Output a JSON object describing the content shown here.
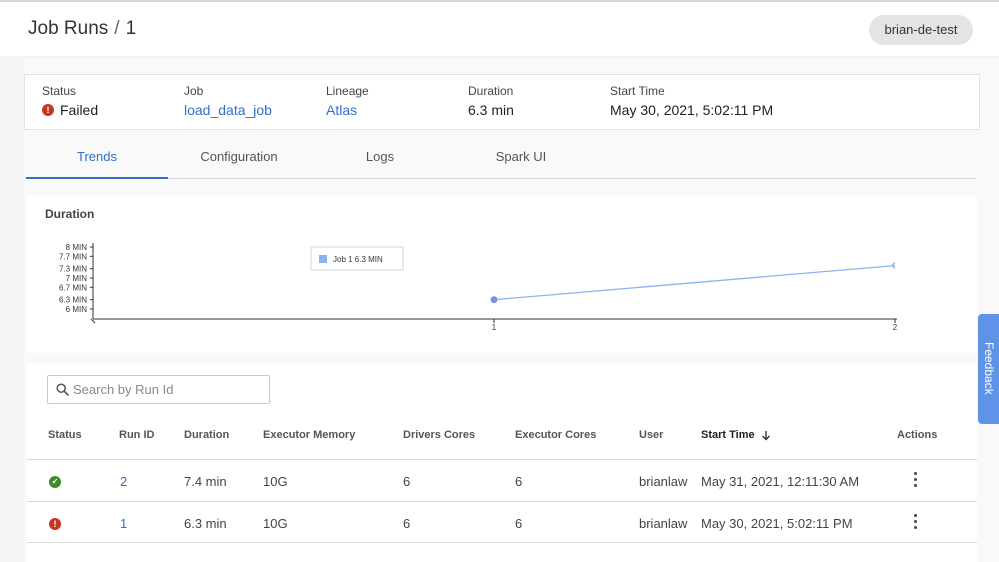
{
  "header": {
    "title": "Job Runs",
    "separator": "/",
    "run_number": "1",
    "profile_label": "brian-de-test"
  },
  "summary": {
    "status_label": "Status",
    "status_value": "Failed",
    "job_label": "Job",
    "job_value": "load_data_job",
    "lineage_label": "Lineage",
    "lineage_value": "Atlas",
    "duration_label": "Duration",
    "duration_value": "6.3 min",
    "start_label": "Start Time",
    "start_value": "May 30, 2021, 5:02:11 PM"
  },
  "tabs": [
    {
      "label": "Trends",
      "active": true
    },
    {
      "label": "Configuration",
      "active": false
    },
    {
      "label": "Logs",
      "active": false
    },
    {
      "label": "Spark UI",
      "active": false
    }
  ],
  "chart_data": {
    "type": "line",
    "title": "Duration",
    "x": [
      1,
      2
    ],
    "x_ticks": [
      "1",
      "2"
    ],
    "y_ticks": [
      "6 MIN",
      "6.3 MIN",
      "6.7 MIN",
      "7 MIN",
      "7.3 MIN",
      "7.7 MIN",
      "8 MIN"
    ],
    "y_tick_values": [
      6,
      6.3,
      6.7,
      7,
      7.3,
      7.7,
      8
    ],
    "ylim": [
      6,
      8
    ],
    "series": [
      {
        "values": [
          6.3,
          7.4
        ],
        "color": "#8ab4f0"
      }
    ],
    "tooltip": {
      "series": "Job",
      "x": "1",
      "value": "6.3 MIN"
    }
  },
  "search": {
    "placeholder": "Search by Run Id"
  },
  "table": {
    "columns": [
      "Status",
      "Run ID",
      "Duration",
      "Executor Memory",
      "Drivers Cores",
      "Executor Cores",
      "User",
      "Start Time",
      "Actions"
    ],
    "rows": [
      {
        "status": "success",
        "run_id": "2",
        "duration": "7.4 min",
        "executor_memory": "10G",
        "drivers_cores": "6",
        "executor_cores": "6",
        "user": "brianlaw",
        "start_time": "May 31, 2021, 12:11:30 AM"
      },
      {
        "status": "failed",
        "run_id": "1",
        "duration": "6.3 min",
        "executor_memory": "10G",
        "drivers_cores": "6",
        "executor_cores": "6",
        "user": "brianlaw",
        "start_time": "May 30, 2021, 5:02:11 PM"
      }
    ]
  },
  "feedback": {
    "label": "Feedback"
  },
  "colors": {
    "accent": "#2f6fd0",
    "error": "#c8371d",
    "success": "#3d8b2a",
    "feedback": "#5f93e8"
  }
}
